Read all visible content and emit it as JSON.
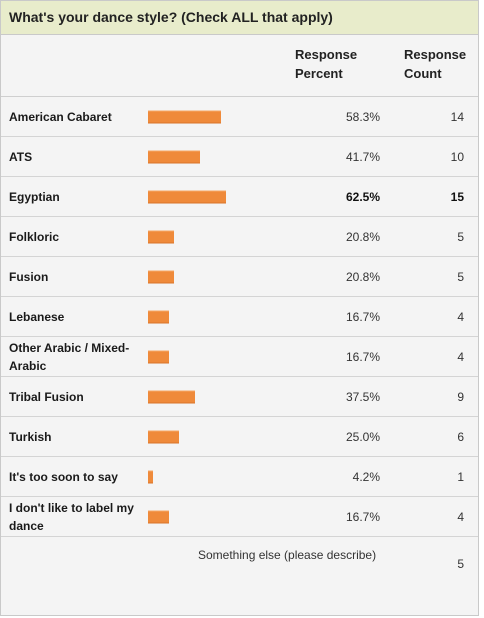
{
  "survey": {
    "question": "What's your dance style? (Check ALL that apply)",
    "header": {
      "percent_line1": "Response",
      "percent_line2": "Percent",
      "count_line1": "Response",
      "count_line2": "Count"
    },
    "accent_color": "#ef8a3a",
    "rows": [
      {
        "label": "American Cabaret",
        "percent": "58.3%",
        "count": "14",
        "fraction": 0.583
      },
      {
        "label": "ATS",
        "percent": "41.7%",
        "count": "10",
        "fraction": 0.417
      },
      {
        "label": "Egyptian",
        "percent": "62.5%",
        "count": "15",
        "fraction": 0.625,
        "highlight": true
      },
      {
        "label": "Folkloric",
        "percent": "20.8%",
        "count": "5",
        "fraction": 0.208
      },
      {
        "label": "Fusion",
        "percent": "20.8%",
        "count": "5",
        "fraction": 0.208
      },
      {
        "label": "Lebanese",
        "percent": "16.7%",
        "count": "4",
        "fraction": 0.167
      },
      {
        "label": "Other Arabic / Mixed-Arabic",
        "percent": "16.7%",
        "count": "4",
        "fraction": 0.167
      },
      {
        "label": "Tribal Fusion",
        "percent": "37.5%",
        "count": "9",
        "fraction": 0.375
      },
      {
        "label": "Turkish",
        "percent": "25.0%",
        "count": "6",
        "fraction": 0.25
      },
      {
        "label": "It's too soon to say",
        "percent": "4.2%",
        "count": "1",
        "fraction": 0.042
      },
      {
        "label": "I don't like to label my dance",
        "percent": "16.7%",
        "count": "4",
        "fraction": 0.167
      }
    ],
    "other": {
      "label": "Something else (please describe)",
      "count": "5"
    }
  }
}
